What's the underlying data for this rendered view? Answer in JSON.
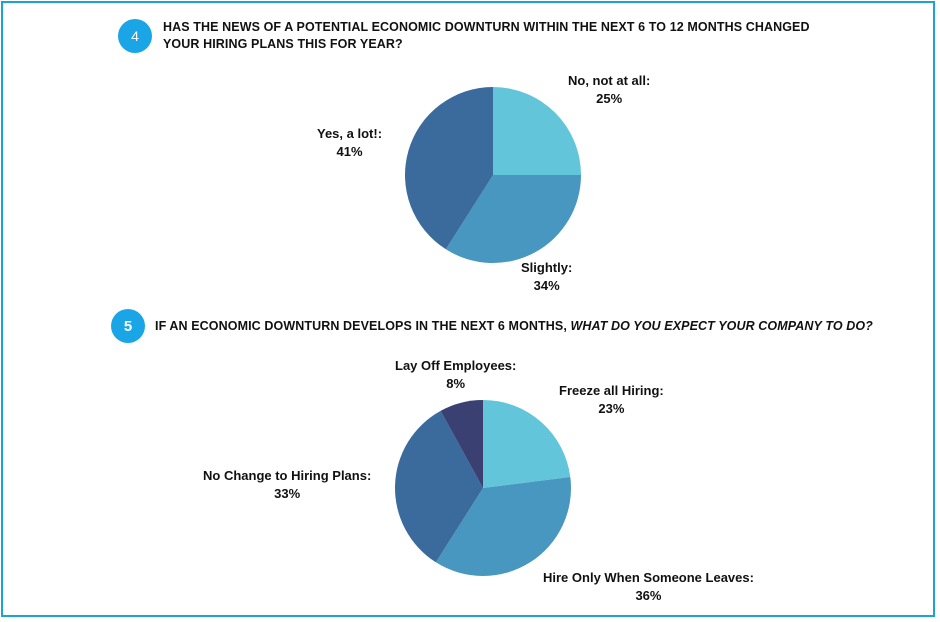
{
  "questions": [
    {
      "number": "4",
      "text": "HAS THE NEWS OF A POTENTIAL ECONOMIC DOWNTURN WITHIN THE NEXT 6 TO 12 MONTHS CHANGED YOUR HIRING PLANS THIS FOR YEAR?"
    },
    {
      "number": "5",
      "text_plain": "IF AN ECONOMIC DOWNTURN DEVELOPS IN THE NEXT 6 MONTHS, ",
      "text_italic": "WHAT DO YOU EXPECT YOUR COMPANY TO DO?"
    }
  ],
  "colors": {
    "accent_circle": "#1aa5e6",
    "frame_border": "#1ba3d8",
    "slice_light": "#62c5da",
    "slice_mid": "#4897c0",
    "slice_dark": "#3b6a9c",
    "slice_navy": "#3a4072"
  },
  "chart_data": [
    {
      "type": "pie",
      "title": "",
      "slices": [
        {
          "label": "No, not at all:",
          "value": 25,
          "display": "25%",
          "color": "#62c5da"
        },
        {
          "label": "Slightly:",
          "value": 34,
          "display": "34%",
          "color": "#4897c0"
        },
        {
          "label": "Yes, a lot!:",
          "value": 41,
          "display": "41%",
          "color": "#3b6a9c"
        }
      ]
    },
    {
      "type": "pie",
      "title": "",
      "slices": [
        {
          "label": "Freeze all Hiring:",
          "value": 23,
          "display": "23%",
          "color": "#62c5da"
        },
        {
          "label": "Hire Only When Someone Leaves:",
          "value": 36,
          "display": "36%",
          "color": "#4897c0"
        },
        {
          "label": "No Change to Hiring Plans:",
          "value": 33,
          "display": "33%",
          "color": "#3b6a9c"
        },
        {
          "label": "Lay Off Employees:",
          "value": 8,
          "display": "8%",
          "color": "#3a4072"
        }
      ]
    }
  ]
}
